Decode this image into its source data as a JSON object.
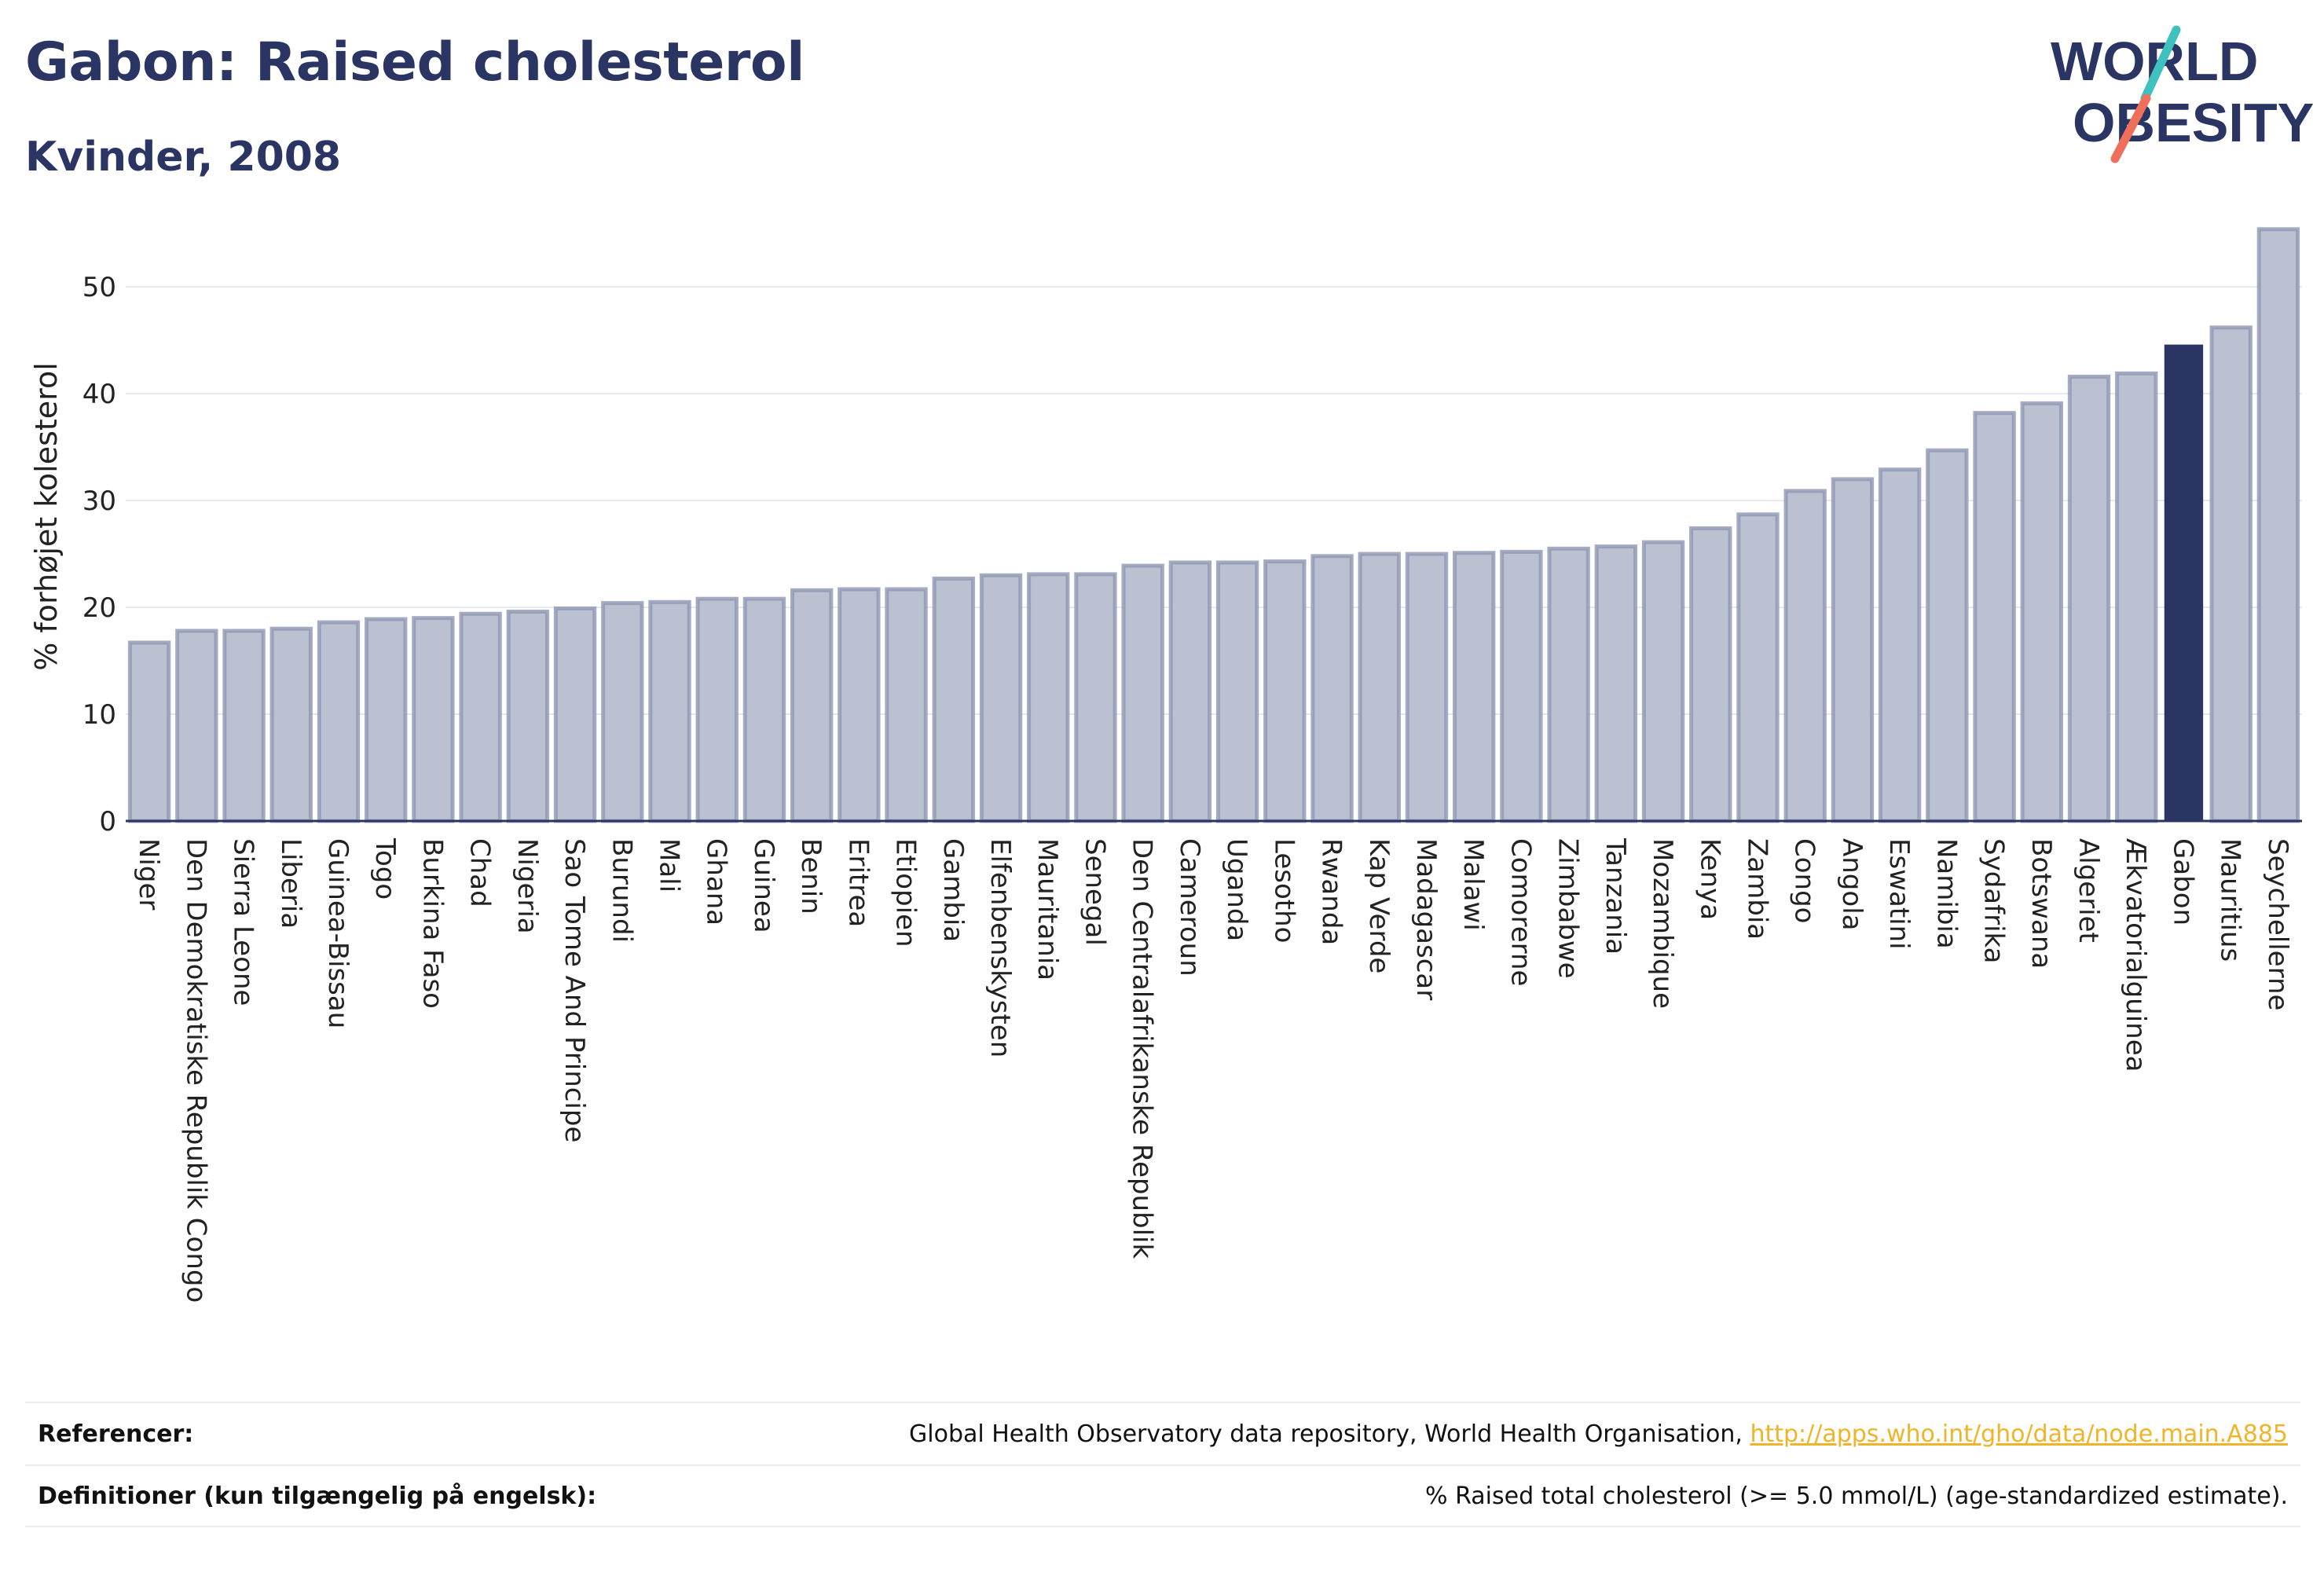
{
  "header": {
    "title": "Gabon: Raised cholesterol",
    "subtitle": "Kvinder, 2008"
  },
  "logo": {
    "line1": "WORLD",
    "line2": "OBESITY"
  },
  "colors": {
    "bar": "#bcc1d1",
    "bar_stroke": "#8f97b3",
    "highlight": "#2b3563",
    "grid": "#e6e8f0",
    "text": "#2b3563",
    "link": "#f0b429",
    "logo_teal": "#3fc1c0",
    "logo_coral": "#ef6f5b"
  },
  "chart_data": {
    "type": "bar",
    "ylabel": "% forhøjet kolesterol",
    "xlabel": "",
    "ylim": [
      0,
      57
    ],
    "yticks": [
      0,
      10,
      20,
      30,
      40,
      50
    ],
    "grid": true,
    "highlight": "Gabon",
    "categories": [
      "Niger",
      "Den Demokratiske Republik Congo",
      "Sierra Leone",
      "Liberia",
      "Guinea-Bissau",
      "Togo",
      "Burkina Faso",
      "Chad",
      "Nigeria",
      "Sao Tome And Principe",
      "Burundi",
      "Mali",
      "Ghana",
      "Guinea",
      "Benin",
      "Eritrea",
      "Etiopien",
      "Gambia",
      "Elfenbenskysten",
      "Mauritania",
      "Senegal",
      "Den Centralafrikanske Republik",
      "Cameroun",
      "Uganda",
      "Lesotho",
      "Rwanda",
      "Kap Verde",
      "Madagascar",
      "Malawi",
      "Comorerne",
      "Zimbabwe",
      "Tanzania",
      "Mozambique",
      "Kenya",
      "Zambia",
      "Congo",
      "Angola",
      "Eswatini",
      "Namibia",
      "Sydafrika",
      "Botswana",
      "Algeriet",
      "Ækvatorialguinea",
      "Gabon",
      "Mauritius",
      "Seychellerne"
    ],
    "values": [
      16.7,
      17.8,
      17.8,
      18.0,
      18.6,
      18.9,
      19.0,
      19.4,
      19.6,
      19.9,
      20.4,
      20.5,
      20.8,
      20.8,
      21.6,
      21.7,
      21.7,
      22.7,
      23.0,
      23.1,
      23.1,
      23.9,
      24.2,
      24.2,
      24.3,
      24.8,
      25.0,
      25.0,
      25.1,
      25.2,
      25.5,
      25.7,
      26.1,
      27.4,
      28.7,
      30.9,
      32.0,
      32.9,
      34.7,
      38.2,
      39.1,
      41.6,
      41.9,
      44.6,
      46.2,
      55.4
    ]
  },
  "footer": {
    "references_label": "Referencer:",
    "references_text": "Global Health Observatory data repository, World Health Organisation, ",
    "references_link": "http://apps.who.int/gho/data/node.main.A885",
    "definitions_label": "Definitioner (kun tilgængelig på engelsk):",
    "definitions_text": "% Raised total cholesterol (>= 5.0 mmol/L) (age-standardized estimate)."
  }
}
